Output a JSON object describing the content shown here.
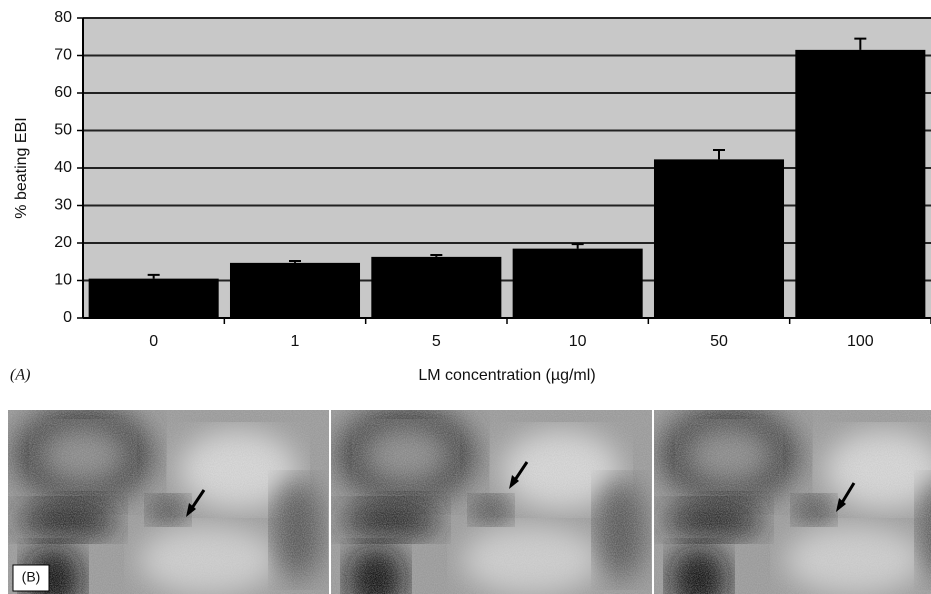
{
  "chart_data": {
    "type": "bar",
    "ylabel": "% beating EBI",
    "xlabel": "LM concentration (µg/ml)",
    "panel_a": "(A)",
    "panel_b": "(B)",
    "categories": [
      "0",
      "1",
      "5",
      "10",
      "50",
      "100"
    ],
    "values": [
      10.5,
      14.7,
      16.3,
      18.5,
      42.3,
      71.5
    ],
    "errors": [
      1,
      0.5,
      0.5,
      1.2,
      2.5,
      3
    ],
    "color": "#000000",
    "ylim": [
      0,
      80
    ],
    "yticks": [
      0,
      10,
      20,
      30,
      40,
      50,
      60,
      70,
      80
    ],
    "grid": true
  }
}
